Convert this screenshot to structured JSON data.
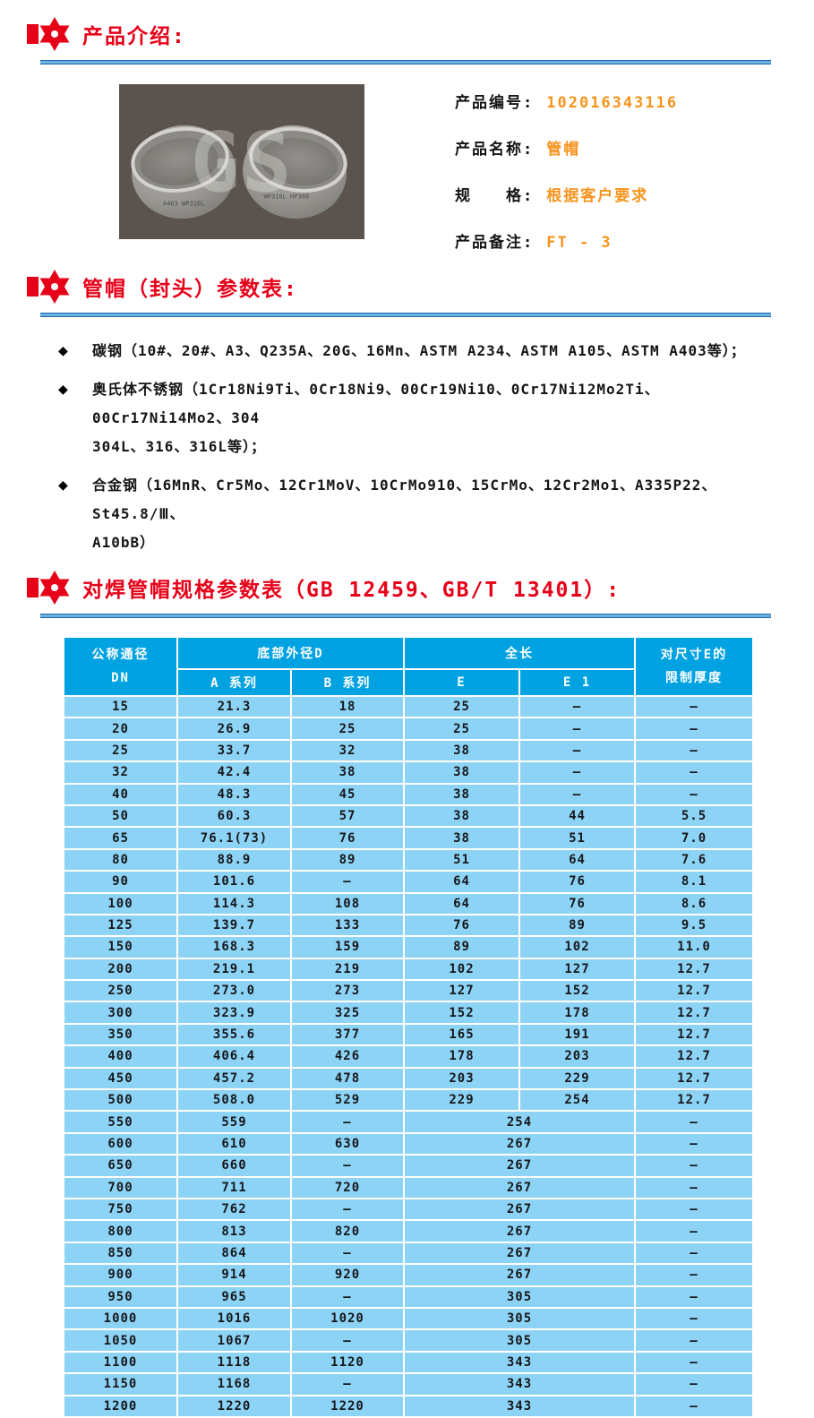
{
  "sections": {
    "intro": {
      "title": "产品介绍:"
    },
    "params": {
      "title": "管帽（封头）参数表:"
    },
    "table": {
      "title": "对焊管帽规格参数表（GB 12459、GB/T 13401）:"
    }
  },
  "colors": {
    "heading_red": "#e60018",
    "value_orange": "#f7941d",
    "divider_blue": "#1a6ab1",
    "table_header_blue": "#00a2e2",
    "table_cell_blue": "#8dd3f5",
    "photo_background": "#5b534e"
  },
  "product": {
    "photo_watermark": "GS",
    "fields": [
      {
        "label": "产品编号:",
        "value": "102016343116"
      },
      {
        "label": "产品名称:",
        "value": "管帽"
      },
      {
        "label": "规　　格:",
        "value": "根据客户要求"
      },
      {
        "label": "产品备注:",
        "value": "FT - 3"
      }
    ]
  },
  "materials": [
    {
      "lines": [
        "碳钢（10#、20#、A3、Q235A、20G、16Mn、ASTM A234、ASTM A105、ASTM A403等）；"
      ]
    },
    {
      "lines": [
        "奥氏体不锈钢（1Cr18Ni9Ti、0Cr18Ni9、00Cr19Ni10、0Cr17Ni12Mo2Ti、00Cr17Ni14Mo2、304",
        "304L、316、316L等）；"
      ]
    },
    {
      "lines": [
        "合金钢（16MnR、Cr5Mo、12Cr1MoV、10CrMo910、15CrMo、12Cr2Mo1、A335P22、St45.8/Ⅲ、",
        "A10bB）"
      ]
    }
  ],
  "spec_table": {
    "header": {
      "dn_top": "公称通径",
      "dn_bottom": "DN",
      "group_d": "底部外径D",
      "col_a": "A 系列",
      "col_b": "B 系列",
      "group_len": "全长",
      "col_e": "E",
      "col_e1": "E 1",
      "limit_top": "对尺寸E的",
      "limit_bottom": "限制厚度"
    },
    "rows": [
      {
        "merged": false,
        "cells": [
          "15",
          "21.3",
          "18",
          "25",
          "–",
          "–"
        ]
      },
      {
        "merged": false,
        "cells": [
          "20",
          "26.9",
          "25",
          "25",
          "–",
          "–"
        ]
      },
      {
        "merged": false,
        "cells": [
          "25",
          "33.7",
          "32",
          "38",
          "–",
          "–"
        ]
      },
      {
        "merged": false,
        "cells": [
          "32",
          "42.4",
          "38",
          "38",
          "–",
          "–"
        ]
      },
      {
        "merged": false,
        "cells": [
          "40",
          "48.3",
          "45",
          "38",
          "–",
          "–"
        ]
      },
      {
        "merged": false,
        "cells": [
          "50",
          "60.3",
          "57",
          "38",
          "44",
          "5.5"
        ]
      },
      {
        "merged": false,
        "cells": [
          "65",
          "76.1(73)",
          "76",
          "38",
          "51",
          "7.0"
        ]
      },
      {
        "merged": false,
        "cells": [
          "80",
          "88.9",
          "89",
          "51",
          "64",
          "7.6"
        ]
      },
      {
        "merged": false,
        "cells": [
          "90",
          "101.6",
          "–",
          "64",
          "76",
          "8.1"
        ]
      },
      {
        "merged": false,
        "cells": [
          "100",
          "114.3",
          "108",
          "64",
          "76",
          "8.6"
        ]
      },
      {
        "merged": false,
        "cells": [
          "125",
          "139.7",
          "133",
          "76",
          "89",
          "9.5"
        ]
      },
      {
        "merged": false,
        "cells": [
          "150",
          "168.3",
          "159",
          "89",
          "102",
          "11.0"
        ]
      },
      {
        "merged": false,
        "cells": [
          "200",
          "219.1",
          "219",
          "102",
          "127",
          "12.7"
        ]
      },
      {
        "merged": false,
        "cells": [
          "250",
          "273.0",
          "273",
          "127",
          "152",
          "12.7"
        ]
      },
      {
        "merged": false,
        "cells": [
          "300",
          "323.9",
          "325",
          "152",
          "178",
          "12.7"
        ]
      },
      {
        "merged": false,
        "cells": [
          "350",
          "355.6",
          "377",
          "165",
          "191",
          "12.7"
        ]
      },
      {
        "merged": false,
        "cells": [
          "400",
          "406.4",
          "426",
          "178",
          "203",
          "12.7"
        ]
      },
      {
        "merged": false,
        "cells": [
          "450",
          "457.2",
          "478",
          "203",
          "229",
          "12.7"
        ]
      },
      {
        "merged": false,
        "cells": [
          "500",
          "508.0",
          "529",
          "229",
          "254",
          "12.7"
        ]
      },
      {
        "merged": true,
        "cells": [
          "550",
          "559",
          "–",
          "254",
          "–"
        ]
      },
      {
        "merged": true,
        "cells": [
          "600",
          "610",
          "630",
          "267",
          "–"
        ]
      },
      {
        "merged": true,
        "cells": [
          "650",
          "660",
          "–",
          "267",
          "–"
        ]
      },
      {
        "merged": true,
        "cells": [
          "700",
          "711",
          "720",
          "267",
          "–"
        ]
      },
      {
        "merged": true,
        "cells": [
          "750",
          "762",
          "–",
          "267",
          "–"
        ]
      },
      {
        "merged": true,
        "cells": [
          "800",
          "813",
          "820",
          "267",
          "–"
        ]
      },
      {
        "merged": true,
        "cells": [
          "850",
          "864",
          "–",
          "267",
          "–"
        ]
      },
      {
        "merged": true,
        "cells": [
          "900",
          "914",
          "920",
          "267",
          "–"
        ]
      },
      {
        "merged": true,
        "cells": [
          "950",
          "965",
          "–",
          "305",
          "–"
        ]
      },
      {
        "merged": true,
        "cells": [
          "1000",
          "1016",
          "1020",
          "305",
          "–"
        ]
      },
      {
        "merged": true,
        "cells": [
          "1050",
          "1067",
          "–",
          "305",
          "–"
        ]
      },
      {
        "merged": true,
        "cells": [
          "1100",
          "1118",
          "1120",
          "343",
          "–"
        ]
      },
      {
        "merged": true,
        "cells": [
          "1150",
          "1168",
          "–",
          "343",
          "–"
        ]
      },
      {
        "merged": true,
        "cells": [
          "1200",
          "1220",
          "1220",
          "343",
          "–"
        ]
      }
    ]
  }
}
